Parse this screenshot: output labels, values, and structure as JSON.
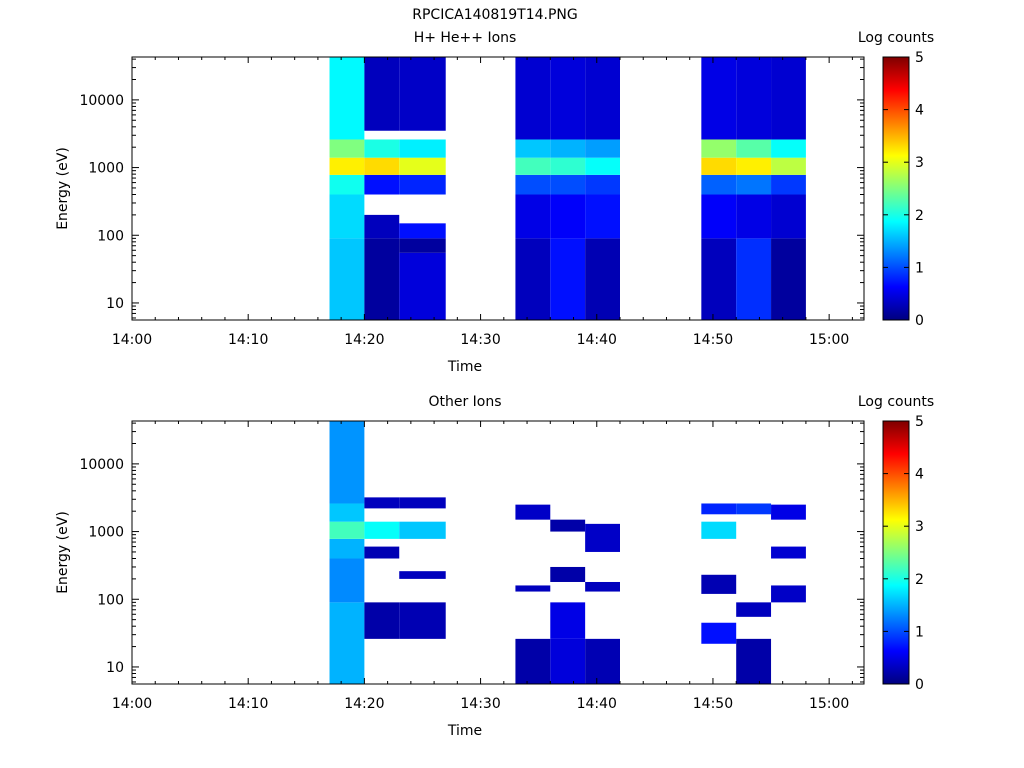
{
  "figure": {
    "title": "RPCICA140819T14.PNG"
  },
  "chart_data": [
    {
      "type": "heatmap",
      "title": "H+ He++ Ions",
      "xlabel": "Time",
      "ylabel": "Energy (eV)",
      "colorbar": {
        "label": "Log counts",
        "range": [
          0,
          5
        ],
        "ticks": [
          "0",
          "1",
          "2",
          "3",
          "4",
          "5"
        ]
      },
      "y_scale": "log",
      "x_range": [
        "14:00",
        "15:03"
      ],
      "y_range": [
        5.6,
        43000
      ],
      "x_ticks": [
        "14:00",
        "14:10",
        "14:20",
        "14:30",
        "14:40",
        "14:50",
        "15:00"
      ],
      "y_ticks": [
        "10",
        "100",
        "1000",
        "10000"
      ],
      "columns": [
        {
          "start": "14:17",
          "end": "14:20",
          "bands": [
            {
              "e_low": 5.6,
              "e_high": 90,
              "value": 1.6
            },
            {
              "e_low": 90,
              "e_high": 400,
              "value": 1.7
            },
            {
              "e_low": 400,
              "e_high": 780,
              "value": 1.95
            },
            {
              "e_low": 780,
              "e_high": 1400,
              "value": 3.2
            },
            {
              "e_low": 1400,
              "e_high": 2600,
              "value": 2.5
            },
            {
              "e_low": 2600,
              "e_high": 43000,
              "value": 1.85
            }
          ]
        },
        {
          "start": "14:20",
          "end": "14:23",
          "bands": [
            {
              "e_low": 5.6,
              "e_high": 90,
              "value": 0.15
            },
            {
              "e_low": 90,
              "e_high": 200,
              "value": 0.3
            },
            {
              "e_low": 400,
              "e_high": 780,
              "value": 0.7
            },
            {
              "e_low": 780,
              "e_high": 1400,
              "value": 3.3
            },
            {
              "e_low": 1400,
              "e_high": 2600,
              "value": 2.0
            },
            {
              "e_low": 3500,
              "e_high": 43000,
              "value": 0.3
            }
          ]
        },
        {
          "start": "14:23",
          "end": "14:27",
          "bands": [
            {
              "e_low": 5.6,
              "e_high": 55,
              "value": 0.45
            },
            {
              "e_low": 55,
              "e_high": 90,
              "value": 0.15
            },
            {
              "e_low": 90,
              "e_high": 150,
              "value": 0.7
            },
            {
              "e_low": 400,
              "e_high": 780,
              "value": 0.8
            },
            {
              "e_low": 780,
              "e_high": 1400,
              "value": 3.0
            },
            {
              "e_low": 1400,
              "e_high": 2600,
              "value": 1.8
            },
            {
              "e_low": 3500,
              "e_high": 43000,
              "value": 0.35
            }
          ]
        },
        {
          "start": "14:33",
          "end": "14:36",
          "bands": [
            {
              "e_low": 5.6,
              "e_high": 90,
              "value": 0.3
            },
            {
              "e_low": 90,
              "e_high": 400,
              "value": 0.5
            },
            {
              "e_low": 400,
              "e_high": 780,
              "value": 1.0
            },
            {
              "e_low": 780,
              "e_high": 1400,
              "value": 2.2
            },
            {
              "e_low": 1400,
              "e_high": 2600,
              "value": 1.6
            },
            {
              "e_low": 2600,
              "e_high": 43000,
              "value": 0.4
            }
          ]
        },
        {
          "start": "14:36",
          "end": "14:39",
          "bands": [
            {
              "e_low": 5.6,
              "e_high": 90,
              "value": 0.7
            },
            {
              "e_low": 90,
              "e_high": 400,
              "value": 0.6
            },
            {
              "e_low": 400,
              "e_high": 780,
              "value": 1.0
            },
            {
              "e_low": 780,
              "e_high": 1400,
              "value": 2.1
            },
            {
              "e_low": 1400,
              "e_high": 2600,
              "value": 1.5
            },
            {
              "e_low": 2600,
              "e_high": 43000,
              "value": 0.45
            }
          ]
        },
        {
          "start": "14:39",
          "end": "14:42",
          "bands": [
            {
              "e_low": 5.6,
              "e_high": 90,
              "value": 0.25
            },
            {
              "e_low": 90,
              "e_high": 400,
              "value": 0.7
            },
            {
              "e_low": 400,
              "e_high": 780,
              "value": 0.9
            },
            {
              "e_low": 780,
              "e_high": 1400,
              "value": 1.9
            },
            {
              "e_low": 1400,
              "e_high": 2600,
              "value": 1.4
            },
            {
              "e_low": 2600,
              "e_high": 43000,
              "value": 0.4
            }
          ]
        },
        {
          "start": "14:49",
          "end": "14:52",
          "bands": [
            {
              "e_low": 5.6,
              "e_high": 90,
              "value": 0.3
            },
            {
              "e_low": 90,
              "e_high": 400,
              "value": 0.6
            },
            {
              "e_low": 400,
              "e_high": 780,
              "value": 1.1
            },
            {
              "e_low": 780,
              "e_high": 1400,
              "value": 3.3
            },
            {
              "e_low": 1400,
              "e_high": 2600,
              "value": 2.6
            },
            {
              "e_low": 2600,
              "e_high": 43000,
              "value": 0.5
            }
          ]
        },
        {
          "start": "14:52",
          "end": "14:55",
          "bands": [
            {
              "e_low": 5.6,
              "e_high": 90,
              "value": 0.85
            },
            {
              "e_low": 90,
              "e_high": 400,
              "value": 0.5
            },
            {
              "e_low": 400,
              "e_high": 780,
              "value": 1.2
            },
            {
              "e_low": 780,
              "e_high": 1400,
              "value": 3.2
            },
            {
              "e_low": 1400,
              "e_high": 2600,
              "value": 2.3
            },
            {
              "e_low": 2600,
              "e_high": 43000,
              "value": 0.45
            }
          ]
        },
        {
          "start": "14:55",
          "end": "14:58",
          "bands": [
            {
              "e_low": 5.6,
              "e_high": 90,
              "value": 0.15
            },
            {
              "e_low": 90,
              "e_high": 400,
              "value": 0.4
            },
            {
              "e_low": 400,
              "e_high": 780,
              "value": 0.9
            },
            {
              "e_low": 780,
              "e_high": 1400,
              "value": 2.8
            },
            {
              "e_low": 1400,
              "e_high": 2600,
              "value": 1.9
            },
            {
              "e_low": 2600,
              "e_high": 43000,
              "value": 0.4
            }
          ]
        }
      ]
    },
    {
      "type": "heatmap",
      "title": "Other Ions",
      "xlabel": "Time",
      "ylabel": "Energy (eV)",
      "colorbar": {
        "label": "Log counts",
        "range": [
          0,
          5
        ],
        "ticks": [
          "0",
          "1",
          "2",
          "3",
          "4",
          "5"
        ]
      },
      "y_scale": "log",
      "x_range": [
        "14:00",
        "15:03"
      ],
      "y_range": [
        5.6,
        43000
      ],
      "x_ticks": [
        "14:00",
        "14:10",
        "14:20",
        "14:30",
        "14:40",
        "14:50",
        "15:00"
      ],
      "y_ticks": [
        "10",
        "100",
        "1000",
        "10000"
      ],
      "columns": [
        {
          "start": "14:17",
          "end": "14:20",
          "bands": [
            {
              "e_low": 5.6,
              "e_high": 90,
              "value": 1.5
            },
            {
              "e_low": 90,
              "e_high": 400,
              "value": 1.3
            },
            {
              "e_low": 400,
              "e_high": 780,
              "value": 1.5
            },
            {
              "e_low": 780,
              "e_high": 1400,
              "value": 2.2
            },
            {
              "e_low": 1400,
              "e_high": 2600,
              "value": 1.6
            },
            {
              "e_low": 2600,
              "e_high": 43000,
              "value": 1.35
            }
          ]
        },
        {
          "start": "14:20",
          "end": "14:23",
          "bands": [
            {
              "e_low": 26,
              "e_high": 90,
              "value": 0.2
            },
            {
              "e_low": 400,
              "e_high": 600,
              "value": 0.25
            },
            {
              "e_low": 780,
              "e_high": 1400,
              "value": 1.9
            },
            {
              "e_low": 2200,
              "e_high": 3200,
              "value": 0.3
            }
          ]
        },
        {
          "start": "14:23",
          "end": "14:27",
          "bands": [
            {
              "e_low": 26,
              "e_high": 90,
              "value": 0.25
            },
            {
              "e_low": 200,
              "e_high": 260,
              "value": 0.3
            },
            {
              "e_low": 780,
              "e_high": 1400,
              "value": 1.6
            },
            {
              "e_low": 2200,
              "e_high": 3200,
              "value": 0.3
            }
          ]
        },
        {
          "start": "14:33",
          "end": "14:36",
          "bands": [
            {
              "e_low": 5.6,
              "e_high": 26,
              "value": 0.2
            },
            {
              "e_low": 130,
              "e_high": 160,
              "value": 0.3
            },
            {
              "e_low": 1500,
              "e_high": 2500,
              "value": 0.35
            }
          ]
        },
        {
          "start": "14:36",
          "end": "14:39",
          "bands": [
            {
              "e_low": 5.6,
              "e_high": 26,
              "value": 0.45
            },
            {
              "e_low": 26,
              "e_high": 90,
              "value": 0.5
            },
            {
              "e_low": 180,
              "e_high": 300,
              "value": 0.2
            },
            {
              "e_low": 1000,
              "e_high": 1500,
              "value": 0.2
            }
          ]
        },
        {
          "start": "14:39",
          "end": "14:42",
          "bands": [
            {
              "e_low": 5.6,
              "e_high": 26,
              "value": 0.25
            },
            {
              "e_low": 130,
              "e_high": 180,
              "value": 0.3
            },
            {
              "e_low": 500,
              "e_high": 1300,
              "value": 0.35
            }
          ]
        },
        {
          "start": "14:49",
          "end": "14:52",
          "bands": [
            {
              "e_low": 22,
              "e_high": 45,
              "value": 0.7
            },
            {
              "e_low": 120,
              "e_high": 230,
              "value": 0.25
            },
            {
              "e_low": 780,
              "e_high": 1400,
              "value": 1.7
            },
            {
              "e_low": 1800,
              "e_high": 2600,
              "value": 0.8
            }
          ]
        },
        {
          "start": "14:52",
          "end": "14:55",
          "bands": [
            {
              "e_low": 5.6,
              "e_high": 26,
              "value": 0.2
            },
            {
              "e_low": 55,
              "e_high": 90,
              "value": 0.3
            },
            {
              "e_low": 1800,
              "e_high": 2600,
              "value": 0.9
            }
          ]
        },
        {
          "start": "14:55",
          "end": "14:58",
          "bands": [
            {
              "e_low": 90,
              "e_high": 160,
              "value": 0.35
            },
            {
              "e_low": 400,
              "e_high": 600,
              "value": 0.4
            },
            {
              "e_low": 1500,
              "e_high": 2500,
              "value": 0.5
            }
          ]
        }
      ]
    }
  ]
}
